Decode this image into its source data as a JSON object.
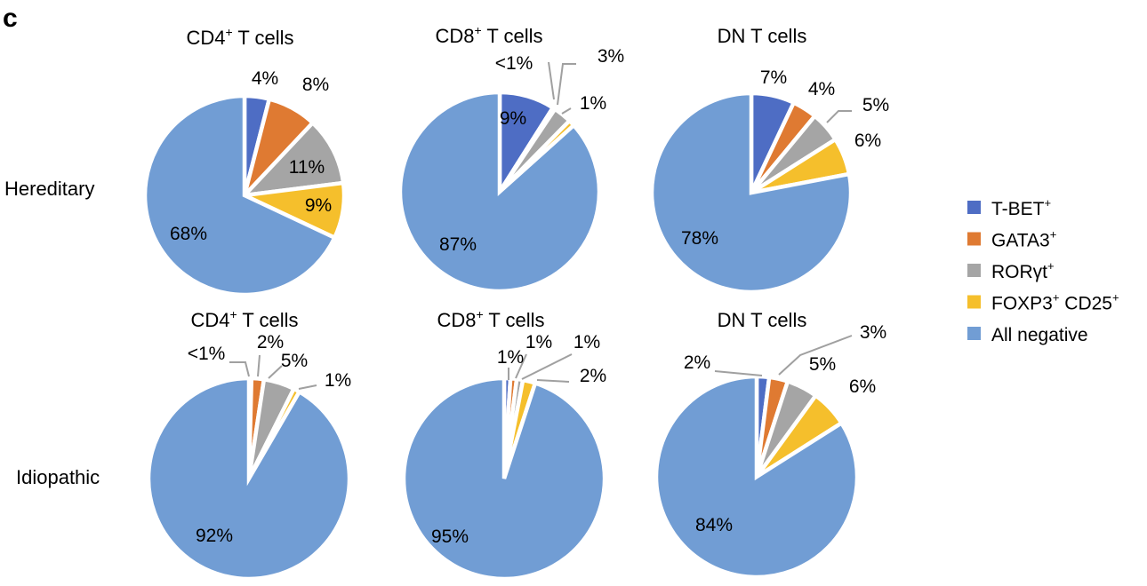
{
  "panel_label": "c",
  "colors": {
    "T-BET": "#4e6dc4",
    "GATA3": "#df7a32",
    "RORgt": "#a5a5a5",
    "FOXP3": "#f5bf2c",
    "negative": "#719dd4",
    "leader": "#a0a0a0"
  },
  "legend": {
    "placement": "right",
    "items": [
      {
        "key": "T-BET",
        "text": "T-BET",
        "sup": "+"
      },
      {
        "key": "GATA3",
        "text": "GATA3",
        "sup": "+"
      },
      {
        "key": "RORgt",
        "text": "RORγt",
        "sup": "+"
      },
      {
        "key": "FOXP3",
        "text": "FOXP3",
        "sup": "+",
        "text2": " CD25",
        "sup2": "+"
      },
      {
        "key": "negative",
        "text": "All negative"
      }
    ]
  },
  "chart_data": [
    {
      "type": "pie",
      "row": "Hereditary",
      "title": "CD4+ T cells",
      "title_parts": {
        "text": "CD4",
        "sup": "+",
        "rest": " T cells"
      },
      "slices": [
        {
          "category": "T-BET",
          "value": 4,
          "label": "4%"
        },
        {
          "category": "GATA3",
          "value": 8,
          "label": "8%"
        },
        {
          "category": "RORgt",
          "value": 11,
          "label": "11%"
        },
        {
          "category": "FOXP3",
          "value": 9,
          "label": "9%"
        },
        {
          "category": "negative",
          "value": 68,
          "label": "68%"
        }
      ]
    },
    {
      "type": "pie",
      "row": "Hereditary",
      "title": "CD8+ T cells",
      "title_parts": {
        "text": "CD8",
        "sup": "+",
        "rest": " T cells"
      },
      "slices": [
        {
          "category": "T-BET",
          "value": 9,
          "label": "9%"
        },
        {
          "category": "GATA3",
          "value": 0.4,
          "label": "<1%"
        },
        {
          "category": "RORgt",
          "value": 3,
          "label": "3%"
        },
        {
          "category": "FOXP3",
          "value": 1,
          "label": "1%"
        },
        {
          "category": "negative",
          "value": 87,
          "label": "87%"
        }
      ]
    },
    {
      "type": "pie",
      "row": "Hereditary",
      "title": "DN T cells",
      "title_parts": {
        "text": "DN T cells"
      },
      "slices": [
        {
          "category": "T-BET",
          "value": 7,
          "label": "7%"
        },
        {
          "category": "GATA3",
          "value": 4,
          "label": "4%"
        },
        {
          "category": "RORgt",
          "value": 5,
          "label": "5%"
        },
        {
          "category": "FOXP3",
          "value": 6,
          "label": "6%"
        },
        {
          "category": "negative",
          "value": 78,
          "label": "78%"
        }
      ]
    },
    {
      "type": "pie",
      "row": "Idiopathic",
      "title": "CD4+ T cells",
      "title_parts": {
        "text": "CD4",
        "sup": "+",
        "rest": " T cells"
      },
      "slices": [
        {
          "category": "T-BET",
          "value": 0.4,
          "label": "<1%"
        },
        {
          "category": "GATA3",
          "value": 2,
          "label": "2%"
        },
        {
          "category": "RORgt",
          "value": 5,
          "label": "5%"
        },
        {
          "category": "FOXP3",
          "value": 1,
          "label": "1%"
        },
        {
          "category": "negative",
          "value": 92,
          "label": "92%"
        }
      ]
    },
    {
      "type": "pie",
      "row": "Idiopathic",
      "title": "CD8+ T cells",
      "title_parts": {
        "text": "CD8",
        "sup": "+",
        "rest": " T cells"
      },
      "slices": [
        {
          "category": "T-BET",
          "value": 1,
          "label": "1%"
        },
        {
          "category": "GATA3",
          "value": 1,
          "label": "1%"
        },
        {
          "category": "RORgt",
          "value": 1,
          "label": "1%"
        },
        {
          "category": "FOXP3",
          "value": 2,
          "label": "2%"
        },
        {
          "category": "negative",
          "value": 95,
          "label": "95%"
        }
      ]
    },
    {
      "type": "pie",
      "row": "Idiopathic",
      "title": "DN T cells",
      "title_parts": {
        "text": "DN T cells"
      },
      "slices": [
        {
          "category": "T-BET",
          "value": 2,
          "label": "2%"
        },
        {
          "category": "GATA3",
          "value": 3,
          "label": "3%"
        },
        {
          "category": "RORgt",
          "value": 5,
          "label": "5%"
        },
        {
          "category": "FOXP3",
          "value": 6,
          "label": "6%"
        },
        {
          "category": "negative",
          "value": 84,
          "label": "84%"
        }
      ]
    }
  ]
}
